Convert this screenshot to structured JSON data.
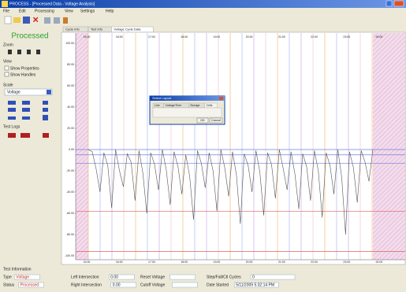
{
  "window": {
    "title": "PROCESS - [Processed Data - Voltage Analysis]",
    "menu": [
      "File",
      "Edit",
      "Processing",
      "View",
      "Settings",
      "Help"
    ]
  },
  "tabs": [
    "Cycle Info",
    "Test Info",
    "Voltage Cycle Data"
  ],
  "sidebar": {
    "status": "Processed",
    "zoom": "Zoom",
    "view": "View",
    "show_properties": "Show Properties",
    "show_handles": "Show Handles",
    "scale": "Scale",
    "scale_value": "Voltage",
    "test_logs": "Test Logs"
  },
  "plot": {
    "ylim": [
      -100,
      100
    ],
    "yticks": [
      {
        "value": 100,
        "label": "100.00"
      },
      {
        "value": 80,
        "label": "80.00"
      },
      {
        "value": 60,
        "label": "60.00"
      },
      {
        "value": 40,
        "label": "40.00"
      },
      {
        "value": 20,
        "label": "20.00"
      },
      {
        "value": 0,
        "label": "0.00"
      },
      {
        "value": -20,
        "label": "-20.00"
      },
      {
        "value": -40,
        "label": "-40.00"
      },
      {
        "value": -60,
        "label": "-60.00"
      },
      {
        "value": -80,
        "label": "-80.00"
      },
      {
        "value": -100,
        "label": "-100.00"
      }
    ],
    "time_labels": [
      "15:00",
      "16:00",
      "17:00",
      "18:00",
      "19:00",
      "20:00",
      "21:00",
      "22:00",
      "23:00",
      "00:00"
    ],
    "limits": [
      {
        "value": 0,
        "color": "#6f7fe0"
      },
      {
        "value": -5,
        "color": "#6f7fe0"
      },
      {
        "value": -13,
        "color": "#6f7fe0"
      },
      {
        "value": -58,
        "color": "#e06060"
      },
      {
        "value": -96,
        "color": "#e06060"
      }
    ],
    "values": [
      0,
      -2,
      -18,
      -40,
      -3,
      -15,
      -55,
      0,
      -20,
      -35,
      -4,
      -12,
      -48,
      -1,
      -22,
      -60,
      -3,
      -14,
      -38,
      0,
      -19,
      -52,
      -2,
      -16,
      -42,
      -5,
      -25,
      -66,
      -1,
      -13,
      -36,
      -3,
      -20,
      -58,
      0,
      -17,
      -44,
      -2,
      -24,
      -70,
      -4,
      -15,
      -40,
      -1,
      -21,
      -62,
      -3,
      -14,
      -46,
      0,
      -18,
      -38,
      -2,
      -23,
      -56,
      -4,
      -16,
      -48,
      -1,
      -20,
      -64,
      -3,
      -15,
      -42,
      0,
      -26,
      -80,
      -2,
      -17,
      -50,
      -1,
      -12,
      -30,
      0
    ]
  },
  "dialog": {
    "title": "Select Layout",
    "tabs": [
      "Line",
      "Voltage/Time",
      "Storage",
      "Cells"
    ],
    "ok": "OK",
    "cancel": "Cancel"
  },
  "test_information": {
    "title": "Test Information",
    "fields": [
      {
        "label": "Type",
        "value": "Voltage"
      },
      {
        "label": "Status",
        "value": "Processed"
      },
      {
        "label": "Left Intersection",
        "value": "0.00"
      },
      {
        "label": "Right Intersection",
        "value": "0.00"
      },
      {
        "label": "Reset Voltage"
      },
      {
        "label": "Cutoff Voltage"
      },
      {
        "label": "Step/Fall/Ctl Cycles",
        "value": "0"
      },
      {
        "label": "Date Started",
        "value": "5/11/2009 5:32:14 PM"
      }
    ]
  }
}
